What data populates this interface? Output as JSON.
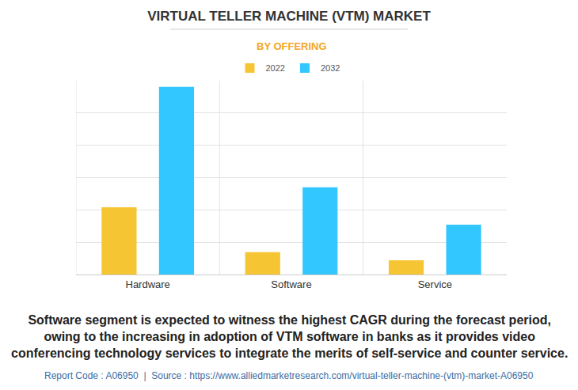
{
  "chart_data": {
    "type": "bar",
    "title": "VIRTUAL TELLER MACHINE (VTM) MARKET",
    "subtitle": "BY OFFERING",
    "categories": [
      "Hardware",
      "Software",
      "Service"
    ],
    "series": [
      {
        "name": "2022",
        "color": "#F5C533",
        "values": [
          2.08,
          0.69,
          0.44
        ]
      },
      {
        "name": "2032",
        "color": "#33C7FF",
        "values": [
          5.81,
          2.7,
          1.54
        ]
      }
    ],
    "ylim": [
      0,
      6
    ],
    "yticks": [
      0,
      1,
      2,
      3,
      4,
      5,
      6
    ],
    "grid": true,
    "tick_labels": "x",
    "legend": "top",
    "caption": [
      "Software segment is expected to witness the highest CAGR during the forecast period,",
      "owing to the increasing in adoption of VTM software in banks as it provides video",
      "conferencing technology services to integrate the merits of self-service and counter service."
    ],
    "source": "Report Code : A06950  |  Source : https://www.alliedmarketresearch.com/virtual-teller-machine-(vtm)-market-A06950"
  }
}
